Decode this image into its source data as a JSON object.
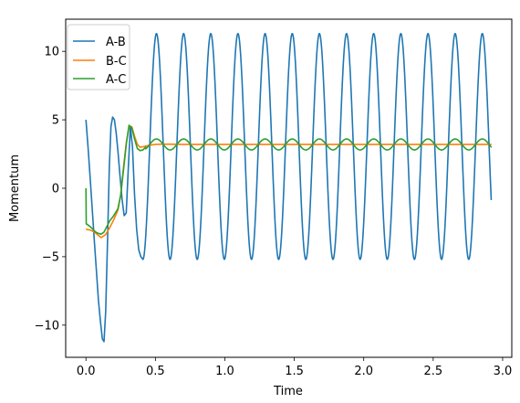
{
  "chart_data": {
    "type": "line",
    "title": "",
    "xlabel": "Time",
    "ylabel": "Momentum",
    "xlim": [
      -0.146,
      3.066
    ],
    "ylim": [
      -12.35,
      12.35
    ],
    "x_ticks": [
      0.0,
      0.5,
      1.0,
      1.5,
      2.0,
      2.5,
      3.0
    ],
    "x_tick_labels": [
      "0.0",
      "0.5",
      "1.0",
      "1.5",
      "2.0",
      "2.5",
      "3.0"
    ],
    "y_ticks": [
      -10,
      -5,
      0,
      5,
      10
    ],
    "y_tick_labels": [
      "−10",
      "−5",
      "0",
      "5",
      "10"
    ],
    "grid": false,
    "legend": "top-left",
    "series": [
      {
        "name": "A-B",
        "color": "#1f77b4",
        "x": [
          0,
          0.015,
          0.03,
          0.045,
          0.06,
          0.075,
          0.09,
          0.105,
          0.118,
          0.13,
          0.142,
          0.155,
          0.168,
          0.18,
          0.192,
          0.205,
          0.218,
          0.232,
          0.245,
          0.26,
          0.275,
          0.29,
          0.305,
          0.32,
          0.335,
          0.35,
          0.365,
          0.38,
          0.395,
          0.41
        ],
        "y": [
          5.0,
          3.0,
          0.8,
          -1.5,
          -3.8,
          -6.0,
          -8.2,
          -9.8,
          -11.0,
          -11.2,
          -9.0,
          -4.0,
          1.5,
          4.5,
          5.2,
          5.0,
          4.0,
          2.5,
          0.9,
          -0.8,
          -2.0,
          -1.8,
          1.5,
          4.5,
          3.0,
          -0.5,
          -3.0,
          -4.5,
          -5.0,
          -5.2
        ],
        "oscillation": {
          "t_start": 0.41,
          "t_end": 2.92,
          "phase_ref_time": 0.41,
          "phase_ref": "minimum",
          "period": 0.1955,
          "max": 11.3,
          "min": -5.2
        }
      },
      {
        "name": "B-C",
        "color": "#ff7f0e",
        "x": [
          0,
          0.03,
          0.06,
          0.09,
          0.11,
          0.14,
          0.17,
          0.2,
          0.23,
          0.25,
          0.27,
          0.29,
          0.31,
          0.33,
          0.35,
          0.37,
          0.39,
          0.42,
          0.46,
          0.5,
          0.55,
          0.6,
          0.7,
          0.8,
          1.0,
          1.5,
          2.0,
          2.5,
          2.92
        ],
        "y": [
          -3.0,
          -3.05,
          -3.2,
          -3.45,
          -3.6,
          -3.4,
          -2.9,
          -2.3,
          -1.6,
          -0.5,
          1.5,
          3.3,
          4.5,
          4.5,
          3.8,
          3.2,
          3.0,
          3.05,
          3.15,
          3.2,
          3.22,
          3.22,
          3.2,
          3.2,
          3.2,
          3.2,
          3.2,
          3.2,
          3.2
        ]
      },
      {
        "name": "A-C",
        "color": "#2ca02c",
        "x": [
          0,
          0.002,
          0.01,
          0.03,
          0.05,
          0.07,
          0.09,
          0.11,
          0.13,
          0.15,
          0.17,
          0.2,
          0.23,
          0.25,
          0.27,
          0.29,
          0.31,
          0.33,
          0.35,
          0.37,
          0.39,
          0.41,
          0.43
        ],
        "y": [
          0,
          -2.6,
          -2.65,
          -2.8,
          -3.0,
          -3.2,
          -3.3,
          -3.35,
          -3.2,
          -2.8,
          -2.4,
          -2.0,
          -1.5,
          -0.5,
          1.3,
          3.2,
          4.6,
          4.4,
          3.6,
          2.9,
          2.75,
          2.8,
          3.0
        ],
        "oscillation": {
          "t_start": 0.43,
          "t_end": 2.92,
          "phase_ref_time": 0.41,
          "phase_ref": "minimum",
          "period": 0.1955,
          "max": 3.6,
          "min": 2.8
        }
      }
    ]
  }
}
